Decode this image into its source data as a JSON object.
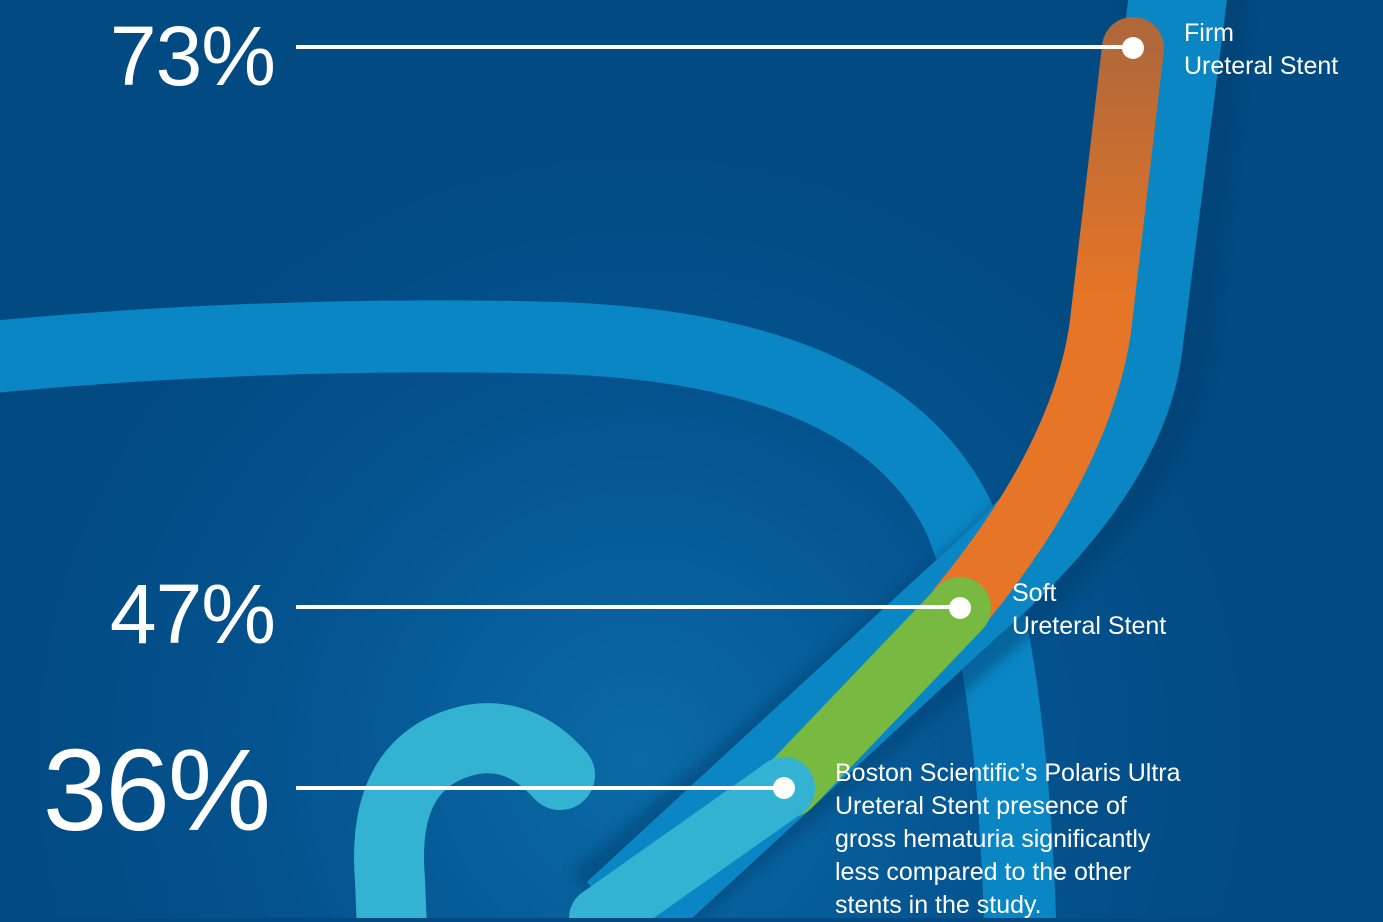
{
  "callouts": [
    {
      "value": "73%",
      "label_line1": "Firm",
      "label_line2": "Ureteral Stent",
      "color": "#e67527"
    },
    {
      "value": "47%",
      "label_line1": "Soft",
      "label_line2": "Ureteral Stent",
      "color": "#78b942"
    },
    {
      "value": "36%",
      "label_line1": "Boston Scientific’s Polaris Ultra",
      "label_line2": "Ureteral Stent presence of",
      "label_line3": "gross hematuria significantly",
      "label_line4": "less compared to the other",
      "label_line5": "stents in the study.",
      "color": "#33b3d1"
    }
  ],
  "colors": {
    "background": "#024a82",
    "stent_tube": "#0a86c4",
    "leader_line": "#ffffff"
  }
}
